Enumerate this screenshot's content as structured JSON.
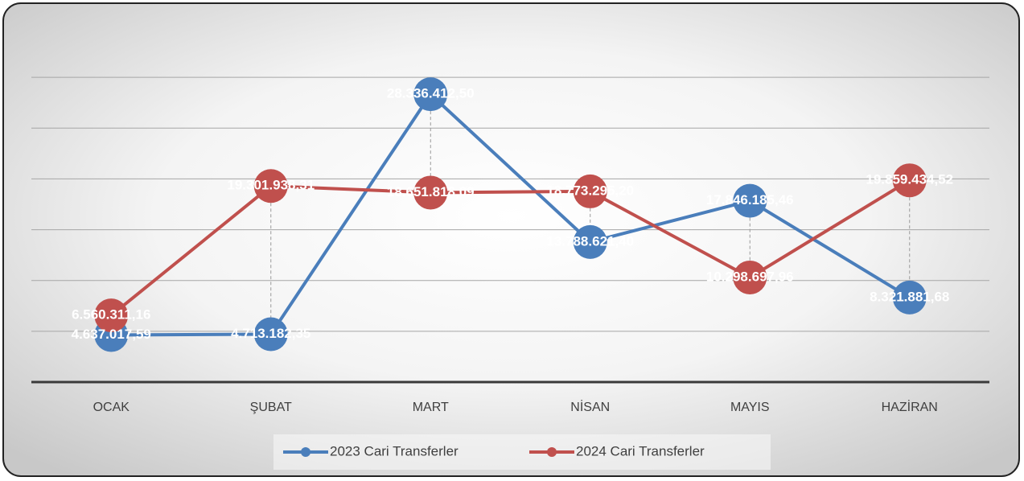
{
  "chart_data": {
    "type": "line",
    "categories": [
      "OCAK",
      "ŞUBAT",
      "MART",
      "NİSAN",
      "MAYIS",
      "HAZİRAN"
    ],
    "series": [
      {
        "name": "2023 Cari Transferler",
        "color": "#4a7ebb",
        "values": [
          4637017.59,
          4713182.35,
          28336412.5,
          13788621.4,
          17846185.46,
          8321881.68
        ],
        "value_labels": [
          "4.637.017,59",
          "4.713.182,35",
          "28.336.412,50",
          "13.788.621,40",
          "17.846.185,46",
          "8.321.881,68"
        ]
      },
      {
        "name": "2024 Cari Transferler",
        "color": "#c0504d",
        "values": [
          6560311.16,
          19301938.31,
          18651818.09,
          18773295.2,
          10298697.96,
          19859434.52
        ],
        "value_labels": [
          "6.560.311,16",
          "19.301.938,31",
          "18.651.818,09",
          "18.773.295,20",
          "10.298.697,96",
          "19.859.434,52"
        ]
      }
    ],
    "ylim": [
      0,
      35000000
    ],
    "yticks": [
      0,
      5000000,
      10000000,
      15000000,
      20000000,
      25000000,
      30000000
    ],
    "grid": true
  }
}
